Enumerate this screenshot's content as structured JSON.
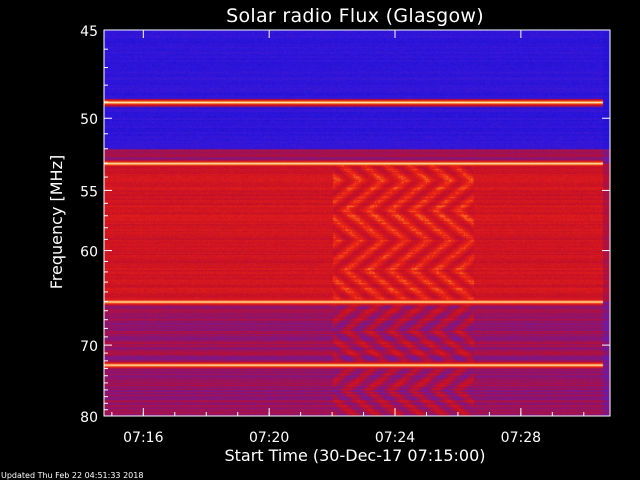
{
  "chart_data": {
    "type": "heatmap",
    "title": "Solar radio Flux (Glasgow)",
    "xlabel": "Start Time (30-Dec-17 07:15:00)",
    "ylabel": "Frequency [MHz]",
    "x_ticks": [
      "07:16",
      "07:20",
      "07:24",
      "07:28"
    ],
    "y_ticks": [
      45,
      50,
      55,
      60,
      70,
      80
    ],
    "xlim": [
      "07:14:45",
      "07:30:50"
    ],
    "ylim": [
      80,
      45
    ],
    "y_scale": "reciprocal",
    "colormap": "blue-purple-red-orange-white",
    "persistent_bright_bands_mhz": [
      49.0,
      53.0,
      65.0,
      72.5
    ],
    "high_intensity_band_mhz": [
      53,
      65
    ],
    "low_intensity_band_mhz": [
      45,
      52
    ],
    "interference_pattern_time": [
      "07:22",
      "07:26"
    ]
  },
  "footer": {
    "updated": "Updated Thu Feb 22 04:51:33 2018"
  },
  "colors": {
    "background": "#000000",
    "text": "#ffffff",
    "low_flux": "#2a12c8",
    "mid_flux": "#b0113a",
    "high_flux": "#ffffff"
  }
}
